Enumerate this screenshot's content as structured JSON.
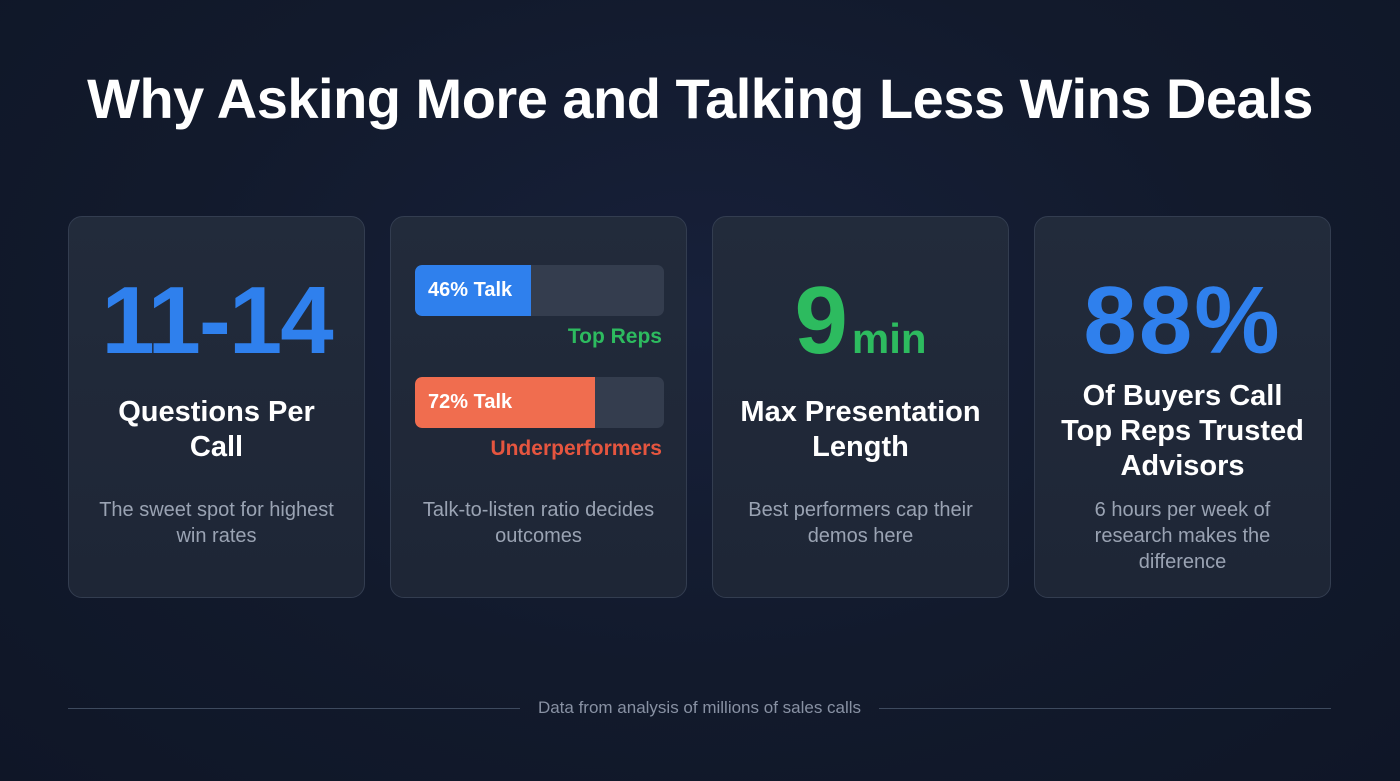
{
  "title": "Why Asking More and Talking Less Wins Deals",
  "colors": {
    "background": "#121a2c",
    "card": "#222b3b",
    "blue": "#2f80ed",
    "green": "#2dbb5f",
    "coral": "#f06d4f",
    "red_text": "#e5553f",
    "muted_text": "#9aa3b3"
  },
  "cards": [
    {
      "stat": "11-14",
      "label": "Questions Per Call",
      "description": "The sweet spot for highest win rates"
    },
    {
      "bars": [
        {
          "label": "46% Talk",
          "percent": 46,
          "caption": "Top Reps"
        },
        {
          "label": "72% Talk",
          "percent": 72,
          "caption": "Underperformers"
        }
      ],
      "description": "Talk-to-listen ratio decides outcomes"
    },
    {
      "stat": "9",
      "unit": "min",
      "label": "Max Presentation Length",
      "description": "Best performers cap their demos here"
    },
    {
      "stat": "88%",
      "label": "Of Buyers Call Top Reps Trusted Advisors",
      "description": "6 hours per week of research makes the difference"
    }
  ],
  "footer": {
    "source": "Data from analysis of millions of sales calls"
  }
}
